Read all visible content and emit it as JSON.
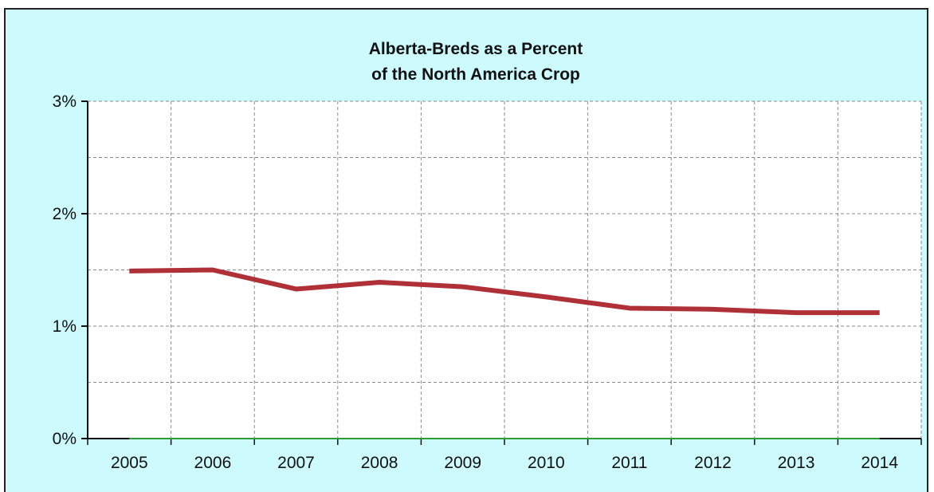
{
  "colors": {
    "background": "#ccfafd",
    "plot_background": "#ffffff",
    "grid": "#8a8a8a",
    "axis": "#111111",
    "series_line": "#b03038",
    "baseline": "#2e9a3a"
  },
  "chart_data": {
    "type": "line",
    "title": "Alberta-Breds as a Percent of the North America Crop",
    "title_lines": [
      "Alberta-Breds as a Percent",
      "of the North America Crop"
    ],
    "xlabel": "",
    "ylabel": "",
    "categories": [
      "2005",
      "2006",
      "2007",
      "2008",
      "2009",
      "2010",
      "2011",
      "2012",
      "2013",
      "2014"
    ],
    "y_ticks": [
      "0%",
      "1%",
      "2%",
      "3%"
    ],
    "y_tick_values": [
      0,
      1,
      2,
      3
    ],
    "ylim": [
      0,
      3
    ],
    "y_unit": "%",
    "grid": true,
    "grid_style": "dashed",
    "legend": "none",
    "series": [
      {
        "values": [
          1.49,
          1.5,
          1.33,
          1.39,
          1.35,
          1.26,
          1.16,
          1.15,
          1.12,
          1.12
        ],
        "color": "#b03038"
      },
      {
        "values": [
          0,
          0,
          0,
          0,
          0,
          0,
          0,
          0,
          0,
          0
        ],
        "color": "#2e9a3a"
      }
    ]
  }
}
